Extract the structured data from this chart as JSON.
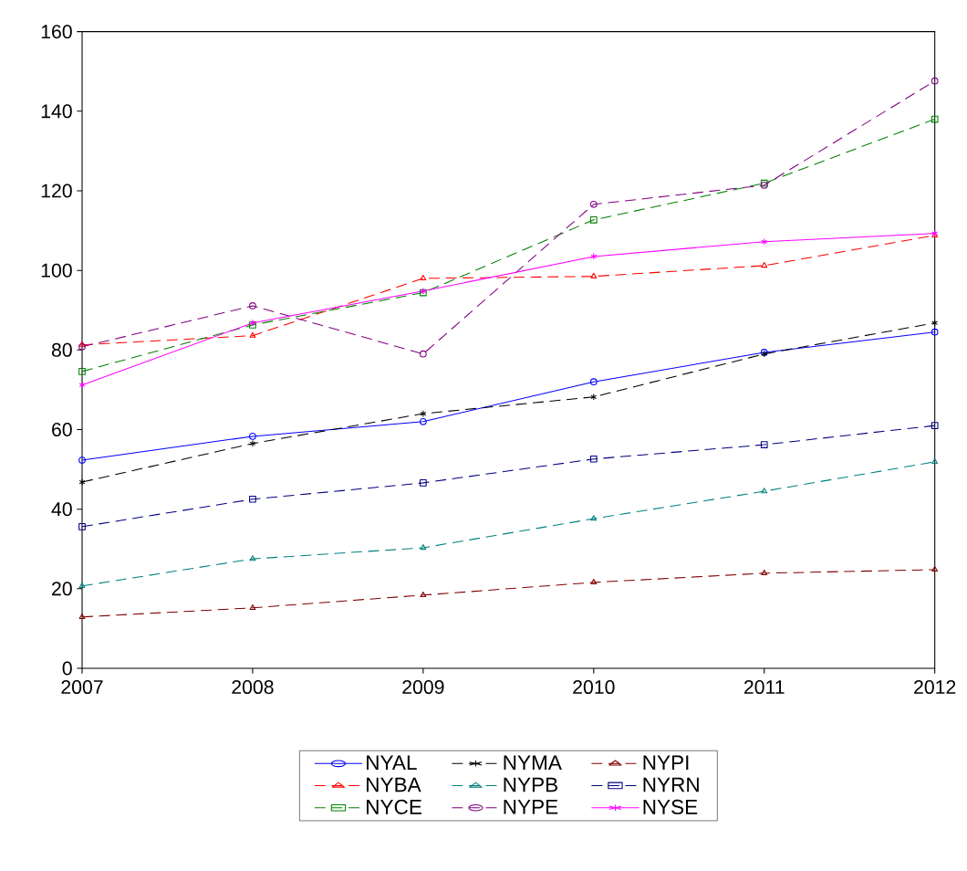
{
  "chart_data": {
    "type": "line",
    "x": [
      2007,
      2008,
      2009,
      2010,
      2011,
      2012
    ],
    "xlim": [
      2007,
      2012
    ],
    "xticks": [
      2007,
      2008,
      2009,
      2010,
      2011,
      2012
    ],
    "ylim": [
      0,
      160
    ],
    "yticks": [
      0,
      20,
      40,
      60,
      80,
      100,
      120,
      140,
      160
    ],
    "grid": false,
    "legend": "bottom",
    "series": [
      {
        "name": "NYAL",
        "color": "#0000ff",
        "marker": "circle",
        "line_style": "solid",
        "values": [
          52.3,
          58.3,
          62,
          72,
          79.4,
          84.5
        ]
      },
      {
        "name": "NYMA",
        "color": "#000000",
        "marker": "cross",
        "line_style": "dashed",
        "values": [
          46.8,
          56.5,
          64,
          68.2,
          79,
          86.8
        ]
      },
      {
        "name": "NYPI",
        "color": "#800000",
        "marker": "triangle",
        "line_style": "dashed",
        "values": [
          12.9,
          15.2,
          18.4,
          21.6,
          23.9,
          24.8
        ]
      },
      {
        "name": "NYBA",
        "color": "#ff0000",
        "marker": "triangle",
        "line_style": "dashed",
        "values": [
          81.3,
          83.6,
          98,
          98.5,
          101.2,
          108.8
        ]
      },
      {
        "name": "NYPB",
        "color": "#008080",
        "marker": "triangle",
        "line_style": "dashed",
        "values": [
          20.7,
          27.5,
          30.3,
          37.6,
          44.5,
          51.9
        ]
      },
      {
        "name": "NYRN",
        "color": "#000080",
        "marker": "square",
        "line_style": "dashed",
        "values": [
          35.6,
          42.5,
          46.6,
          52.6,
          56.2,
          61
        ]
      },
      {
        "name": "NYCE",
        "color": "#008000",
        "marker": "square",
        "line_style": "dashed",
        "values": [
          74.6,
          86.3,
          94.4,
          112.7,
          121.9,
          138
        ]
      },
      {
        "name": "NYPE",
        "color": "#800080",
        "marker": "circle",
        "line_style": "dashed",
        "values": [
          80.8,
          91.1,
          79,
          116.6,
          121.4,
          147.6
        ]
      },
      {
        "name": "NYSE",
        "color": "#ff00ff",
        "marker": "cross",
        "line_style": "solid",
        "values": [
          71.2,
          86.8,
          94.8,
          103.5,
          107.2,
          109.3
        ]
      }
    ]
  }
}
